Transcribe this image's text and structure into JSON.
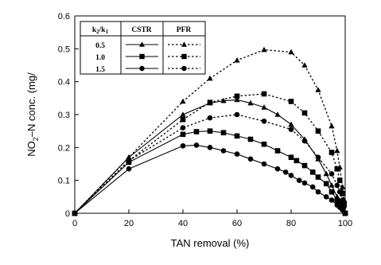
{
  "chart_data": {
    "type": "line",
    "xlabel": "TAN removal (%)",
    "ylabel_main": "NO",
    "ylabel_sub": "2",
    "ylabel_rest": "–N conc. (mg/",
    "xlim": [
      0,
      100
    ],
    "ylim": [
      0,
      0.6
    ],
    "x_ticks": [
      "0",
      "20",
      "40",
      "60",
      "80",
      "100"
    ],
    "y_ticks": [
      "0",
      "0.1",
      "0.2",
      "0.3",
      "0.4",
      "0.5",
      "0.6"
    ],
    "grid": false,
    "legend": {
      "placement": "top-left",
      "header_ratio_main": "k",
      "header_ratio_sub1": "2",
      "header_ratio_slash": "/k",
      "header_ratio_sub2": "1",
      "header_cstr": "CSTR",
      "header_pfr": "PFR",
      "rows": [
        "0.5",
        "1.0",
        "1.5"
      ]
    },
    "series": [
      {
        "name": "0.5",
        "reactor": "CSTR",
        "marker": "triangle",
        "dash": "solid",
        "points": [
          [
            0,
            0
          ],
          [
            20,
            0.17
          ],
          [
            40,
            0.3
          ],
          [
            50,
            0.335
          ],
          [
            55,
            0.342
          ],
          [
            60,
            0.345
          ],
          [
            65,
            0.335
          ],
          [
            70,
            0.322
          ],
          [
            75,
            0.3
          ],
          [
            80,
            0.27
          ],
          [
            85,
            0.225
          ],
          [
            90,
            0.165
          ],
          [
            93,
            0.12
          ],
          [
            95,
            0.085
          ],
          [
            97,
            0.05
          ],
          [
            98,
            0.035
          ],
          [
            99,
            0.017
          ],
          [
            100,
            0
          ]
        ]
      },
      {
        "name": "0.5",
        "reactor": "PFR",
        "marker": "triangle",
        "dash": "dashed",
        "points": [
          [
            0,
            0
          ],
          [
            20,
            0.17
          ],
          [
            40,
            0.34
          ],
          [
            50,
            0.41
          ],
          [
            60,
            0.465
          ],
          [
            70,
            0.497
          ],
          [
            80,
            0.49
          ],
          [
            85,
            0.45
          ],
          [
            90,
            0.375
          ],
          [
            95,
            0.265
          ],
          [
            97,
            0.19
          ],
          [
            98,
            0.14
          ],
          [
            99,
            0.08
          ],
          [
            99.6,
            0.04
          ],
          [
            100,
            0
          ]
        ]
      },
      {
        "name": "1.0",
        "reactor": "CSTR",
        "marker": "square",
        "dash": "solid",
        "points": [
          [
            0,
            0
          ],
          [
            20,
            0.155
          ],
          [
            40,
            0.24
          ],
          [
            45,
            0.248
          ],
          [
            50,
            0.25
          ],
          [
            55,
            0.245
          ],
          [
            60,
            0.235
          ],
          [
            65,
            0.225
          ],
          [
            70,
            0.21
          ],
          [
            75,
            0.19
          ],
          [
            80,
            0.17
          ],
          [
            82,
            0.16
          ],
          [
            85,
            0.145
          ],
          [
            88,
            0.125
          ],
          [
            90,
            0.11
          ],
          [
            93,
            0.09
          ],
          [
            95,
            0.065
          ],
          [
            97,
            0.04
          ],
          [
            98,
            0.027
          ],
          [
            99,
            0.015
          ],
          [
            100,
            0
          ]
        ]
      },
      {
        "name": "1.0",
        "reactor": "PFR",
        "marker": "square",
        "dash": "dashed",
        "points": [
          [
            0,
            0
          ],
          [
            20,
            0.16
          ],
          [
            40,
            0.285
          ],
          [
            50,
            0.337
          ],
          [
            60,
            0.356
          ],
          [
            70,
            0.363
          ],
          [
            80,
            0.34
          ],
          [
            85,
            0.305
          ],
          [
            90,
            0.25
          ],
          [
            95,
            0.185
          ],
          [
            97,
            0.135
          ],
          [
            98,
            0.1
          ],
          [
            99,
            0.06
          ],
          [
            99.6,
            0.03
          ],
          [
            100,
            0
          ]
        ]
      },
      {
        "name": "1.5",
        "reactor": "CSTR",
        "marker": "circle",
        "dash": "solid",
        "points": [
          [
            0,
            0
          ],
          [
            20,
            0.135
          ],
          [
            40,
            0.205
          ],
          [
            45,
            0.207
          ],
          [
            50,
            0.2
          ],
          [
            55,
            0.19
          ],
          [
            60,
            0.18
          ],
          [
            65,
            0.165
          ],
          [
            70,
            0.15
          ],
          [
            75,
            0.135
          ],
          [
            78,
            0.125
          ],
          [
            80,
            0.115
          ],
          [
            83,
            0.1
          ],
          [
            85,
            0.092
          ],
          [
            88,
            0.08
          ],
          [
            90,
            0.065
          ],
          [
            93,
            0.05
          ],
          [
            95,
            0.04
          ],
          [
            97,
            0.025
          ],
          [
            98,
            0.018
          ],
          [
            99,
            0.01
          ],
          [
            100,
            0
          ]
        ]
      },
      {
        "name": "1.5",
        "reactor": "PFR",
        "marker": "circle",
        "dash": "dashed",
        "points": [
          [
            0,
            0
          ],
          [
            20,
            0.16
          ],
          [
            40,
            0.26
          ],
          [
            50,
            0.29
          ],
          [
            60,
            0.3
          ],
          [
            70,
            0.28
          ],
          [
            80,
            0.255
          ],
          [
            85,
            0.22
          ],
          [
            90,
            0.17
          ],
          [
            95,
            0.12
          ],
          [
            97,
            0.085
          ],
          [
            98,
            0.065
          ],
          [
            99,
            0.04
          ],
          [
            99.6,
            0.02
          ],
          [
            100,
            0
          ]
        ]
      }
    ]
  }
}
